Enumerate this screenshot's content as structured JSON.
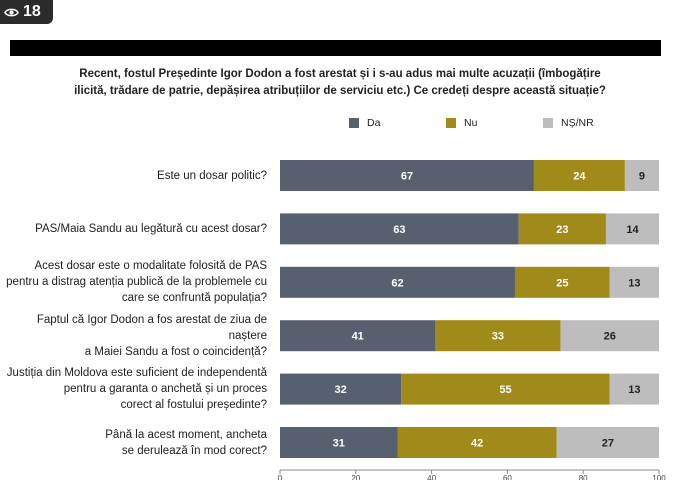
{
  "view_badge": {
    "count": "18"
  },
  "chart_data": {
    "type": "bar",
    "orientation": "horizontal",
    "stacked": true,
    "title": "Recent, fostul Președinte Igor Dodon a fost arestat și i s-au adus mai multe acuzații (îmbogățire ilicită, trădare de patrie, depășirea atribuțiilor de serviciu etc.) Ce credeți despre această situație?",
    "title_lines": [
      "Recent, fostul Președinte Igor Dodon a fost arestat și i s-au adus mai multe acuzații (îmbogățire",
      "ilicită, trădare de patrie, depășirea atribuțiilor de serviciu etc.) Ce credeți despre această situație?"
    ],
    "categories": [
      "Este un dosar politic?",
      "PAS/Maia Sandu au legătură cu acest dosar?",
      "Acest dosar este o modalitate folosită de PAS pentru a distrag atenția publică de la problemele cu care se confruntă populația?",
      "Faptul că Igor Dodon a fos arestat de ziua de naștere a Maiei Sandu a fost o coincidență?",
      "Justiția din Moldova este suficient de independentă pentru a garanta o anchetă și un proces corect al fostului președinte?",
      "Până la acest moment, ancheta se derulează în mod corect?"
    ],
    "category_lines": [
      [
        "Este un dosar politic?"
      ],
      [
        "PAS/Maia Sandu au legătură cu acest dosar?"
      ],
      [
        "Acest dosar este o modalitate folosită de PAS",
        "pentru a distrag atenția publică de la problemele cu",
        "care se confruntă populația?"
      ],
      [
        "Faptul că Igor Dodon a fos arestat de ziua de naștere",
        "a Maiei Sandu a fost o coincidență?"
      ],
      [
        "Justiția din Moldova este suficient de independentă",
        "pentru a garanta o anchetă și un proces",
        "corect al fostului președinte?"
      ],
      [
        "Până la acest moment, ancheta",
        "se derulează în mod corect?"
      ]
    ],
    "series": [
      {
        "name": "Da",
        "color": "#56606e",
        "label_color": "#ffffff",
        "values": [
          67,
          63,
          62,
          41,
          32,
          31
        ]
      },
      {
        "name": "Nu",
        "color": "#a08a1a",
        "label_color": "#ffffff",
        "values": [
          24,
          23,
          25,
          33,
          55,
          42
        ]
      },
      {
        "name": "NȘ/NR",
        "color": "#bdbdbd",
        "label_color": "#222222",
        "values": [
          9,
          14,
          13,
          26,
          13,
          27
        ]
      }
    ],
    "xlim": [
      0,
      100
    ],
    "xticks": [
      0,
      20,
      40,
      60,
      80,
      100
    ],
    "legend_position": "top",
    "grid": false
  }
}
